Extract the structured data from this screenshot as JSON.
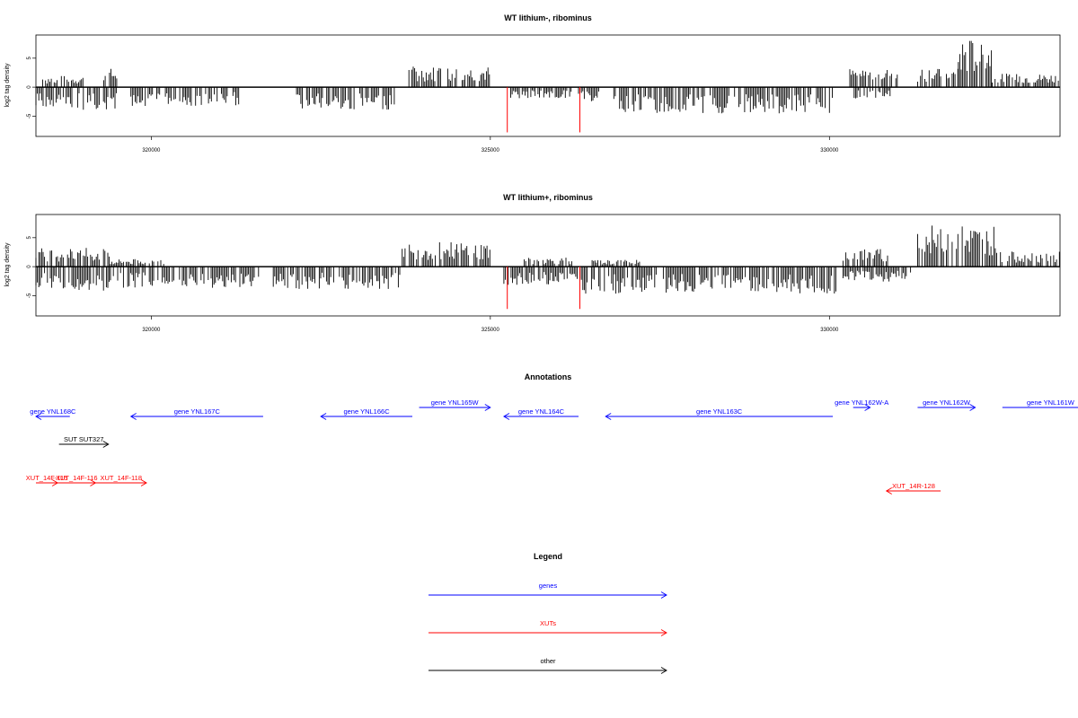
{
  "chart_data": [
    {
      "type": "bar",
      "title": "WT lithium-, ribominus",
      "ylabel": "log2 tag density",
      "xlim": [
        318300,
        333400
      ],
      "ylim": [
        -8.5,
        9
      ],
      "x_ticks": [
        320000,
        325000,
        330000
      ],
      "y_ticks": [
        -5,
        0,
        5
      ],
      "grid": false,
      "coverage_plus": [
        {
          "range": [
            318400,
            319000
          ],
          "level": 1.5
        },
        {
          "range": [
            319300,
            319500
          ],
          "level": 2.5
        },
        {
          "range": [
            323800,
            325000
          ],
          "level": 2.8
        },
        {
          "range": [
            330300,
            331000
          ],
          "level": 2.6
        },
        {
          "range": [
            331300,
            331900
          ],
          "level": 2.5
        },
        {
          "range": [
            331900,
            332400
          ],
          "level": 6.5
        },
        {
          "range": [
            332400,
            333400
          ],
          "level": 1.8
        }
      ],
      "coverage_minus": [
        {
          "range": [
            318300,
            319500
          ],
          "level": -3
        },
        {
          "range": [
            319700,
            321300
          ],
          "level": -2.5
        },
        {
          "range": [
            322100,
            323600
          ],
          "level": -3
        },
        {
          "range": [
            325300,
            326200
          ],
          "level": -1.5
        },
        {
          "range": [
            326300,
            326600
          ],
          "level": -2
        },
        {
          "range": [
            326800,
            330100
          ],
          "level": -3.5
        },
        {
          "range": [
            330300,
            330900
          ],
          "level": -1.5
        }
      ],
      "highlight_minus": [
        {
          "x": 325250,
          "y": -7.8
        },
        {
          "x": 326320,
          "y": -7.8
        }
      ],
      "colors": {
        "coverage": "#000000",
        "highlight": "#ff0000"
      }
    },
    {
      "type": "bar",
      "title": "WT lithium+, ribominus",
      "ylabel": "log2 tag density",
      "xlim": [
        318300,
        333400
      ],
      "ylim": [
        -8.5,
        9
      ],
      "x_ticks": [
        320000,
        325000,
        330000
      ],
      "y_ticks": [
        -5,
        0,
        5
      ],
      "grid": false,
      "coverage_plus": [
        {
          "range": [
            318300,
            319400
          ],
          "level": 2.5
        },
        {
          "range": [
            319400,
            320200
          ],
          "level": 1.0
        },
        {
          "range": [
            323700,
            325000
          ],
          "level": 3.3
        },
        {
          "range": [
            325500,
            326200
          ],
          "level": 1.2
        },
        {
          "range": [
            326500,
            327200
          ],
          "level": 0.9
        },
        {
          "range": [
            330200,
            330900
          ],
          "level": 2.4
        },
        {
          "range": [
            331300,
            332500
          ],
          "level": 5.5
        },
        {
          "range": [
            332500,
            333400
          ],
          "level": 2.0
        }
      ],
      "coverage_minus": [
        {
          "range": [
            318300,
            319400
          ],
          "level": -3.2
        },
        {
          "range": [
            319400,
            321600
          ],
          "level": -2.8
        },
        {
          "range": [
            321800,
            323700
          ],
          "level": -3.0
        },
        {
          "range": [
            325200,
            326300
          ],
          "level": -2.5
        },
        {
          "range": [
            326300,
            330100
          ],
          "level": -3.6
        },
        {
          "range": [
            330200,
            331200
          ],
          "level": -2.0
        }
      ],
      "highlight_minus": [
        {
          "x": 325250,
          "y": -7.3
        },
        {
          "x": 326320,
          "y": -7.3
        }
      ],
      "colors": {
        "coverage": "#000000",
        "highlight": "#ff0000"
      }
    }
  ],
  "annotations": {
    "title": "Annotations",
    "genes": [
      {
        "label": "gene YNL168C",
        "start": 318300,
        "end": 318800,
        "strand": "-"
      },
      {
        "label": "gene YNL167C",
        "start": 319700,
        "end": 321650,
        "strand": "-"
      },
      {
        "label": "gene YNL166C",
        "start": 322500,
        "end": 323850,
        "strand": "-"
      },
      {
        "label": "gene YNL165W",
        "start": 323950,
        "end": 325000,
        "strand": "+"
      },
      {
        "label": "gene YNL164C",
        "start": 325200,
        "end": 326300,
        "strand": "-"
      },
      {
        "label": "gene YNL163C",
        "start": 326700,
        "end": 330050,
        "strand": "-"
      },
      {
        "label": "gene YNL162W-A",
        "start": 330350,
        "end": 330600,
        "strand": "+"
      },
      {
        "label": "gene YNL162W",
        "start": 331300,
        "end": 332150,
        "strand": "+"
      },
      {
        "label": "gene YNL161W",
        "start": 332550,
        "end": 334500,
        "strand": "+"
      }
    ],
    "xuts": [
      {
        "label": "XUT_14F-115",
        "start": 318300,
        "end": 318620,
        "strand": "+"
      },
      {
        "label": "XUT_14F-116",
        "start": 318620,
        "end": 319180,
        "strand": "+"
      },
      {
        "label": "XUT_14F-118",
        "start": 319180,
        "end": 319930,
        "strand": "+"
      },
      {
        "label": "XUT_14R-128",
        "start": 330840,
        "end": 331640,
        "strand": "-"
      }
    ],
    "other": [
      {
        "label": "SUT SUT327",
        "start": 318640,
        "end": 319370,
        "strand": "+"
      }
    ]
  },
  "legend": {
    "title": "Legend",
    "items": [
      {
        "label": "genes",
        "color": "#0000ff"
      },
      {
        "label": "XUTs",
        "color": "#ff0000"
      },
      {
        "label": "other",
        "color": "#000000"
      }
    ]
  }
}
